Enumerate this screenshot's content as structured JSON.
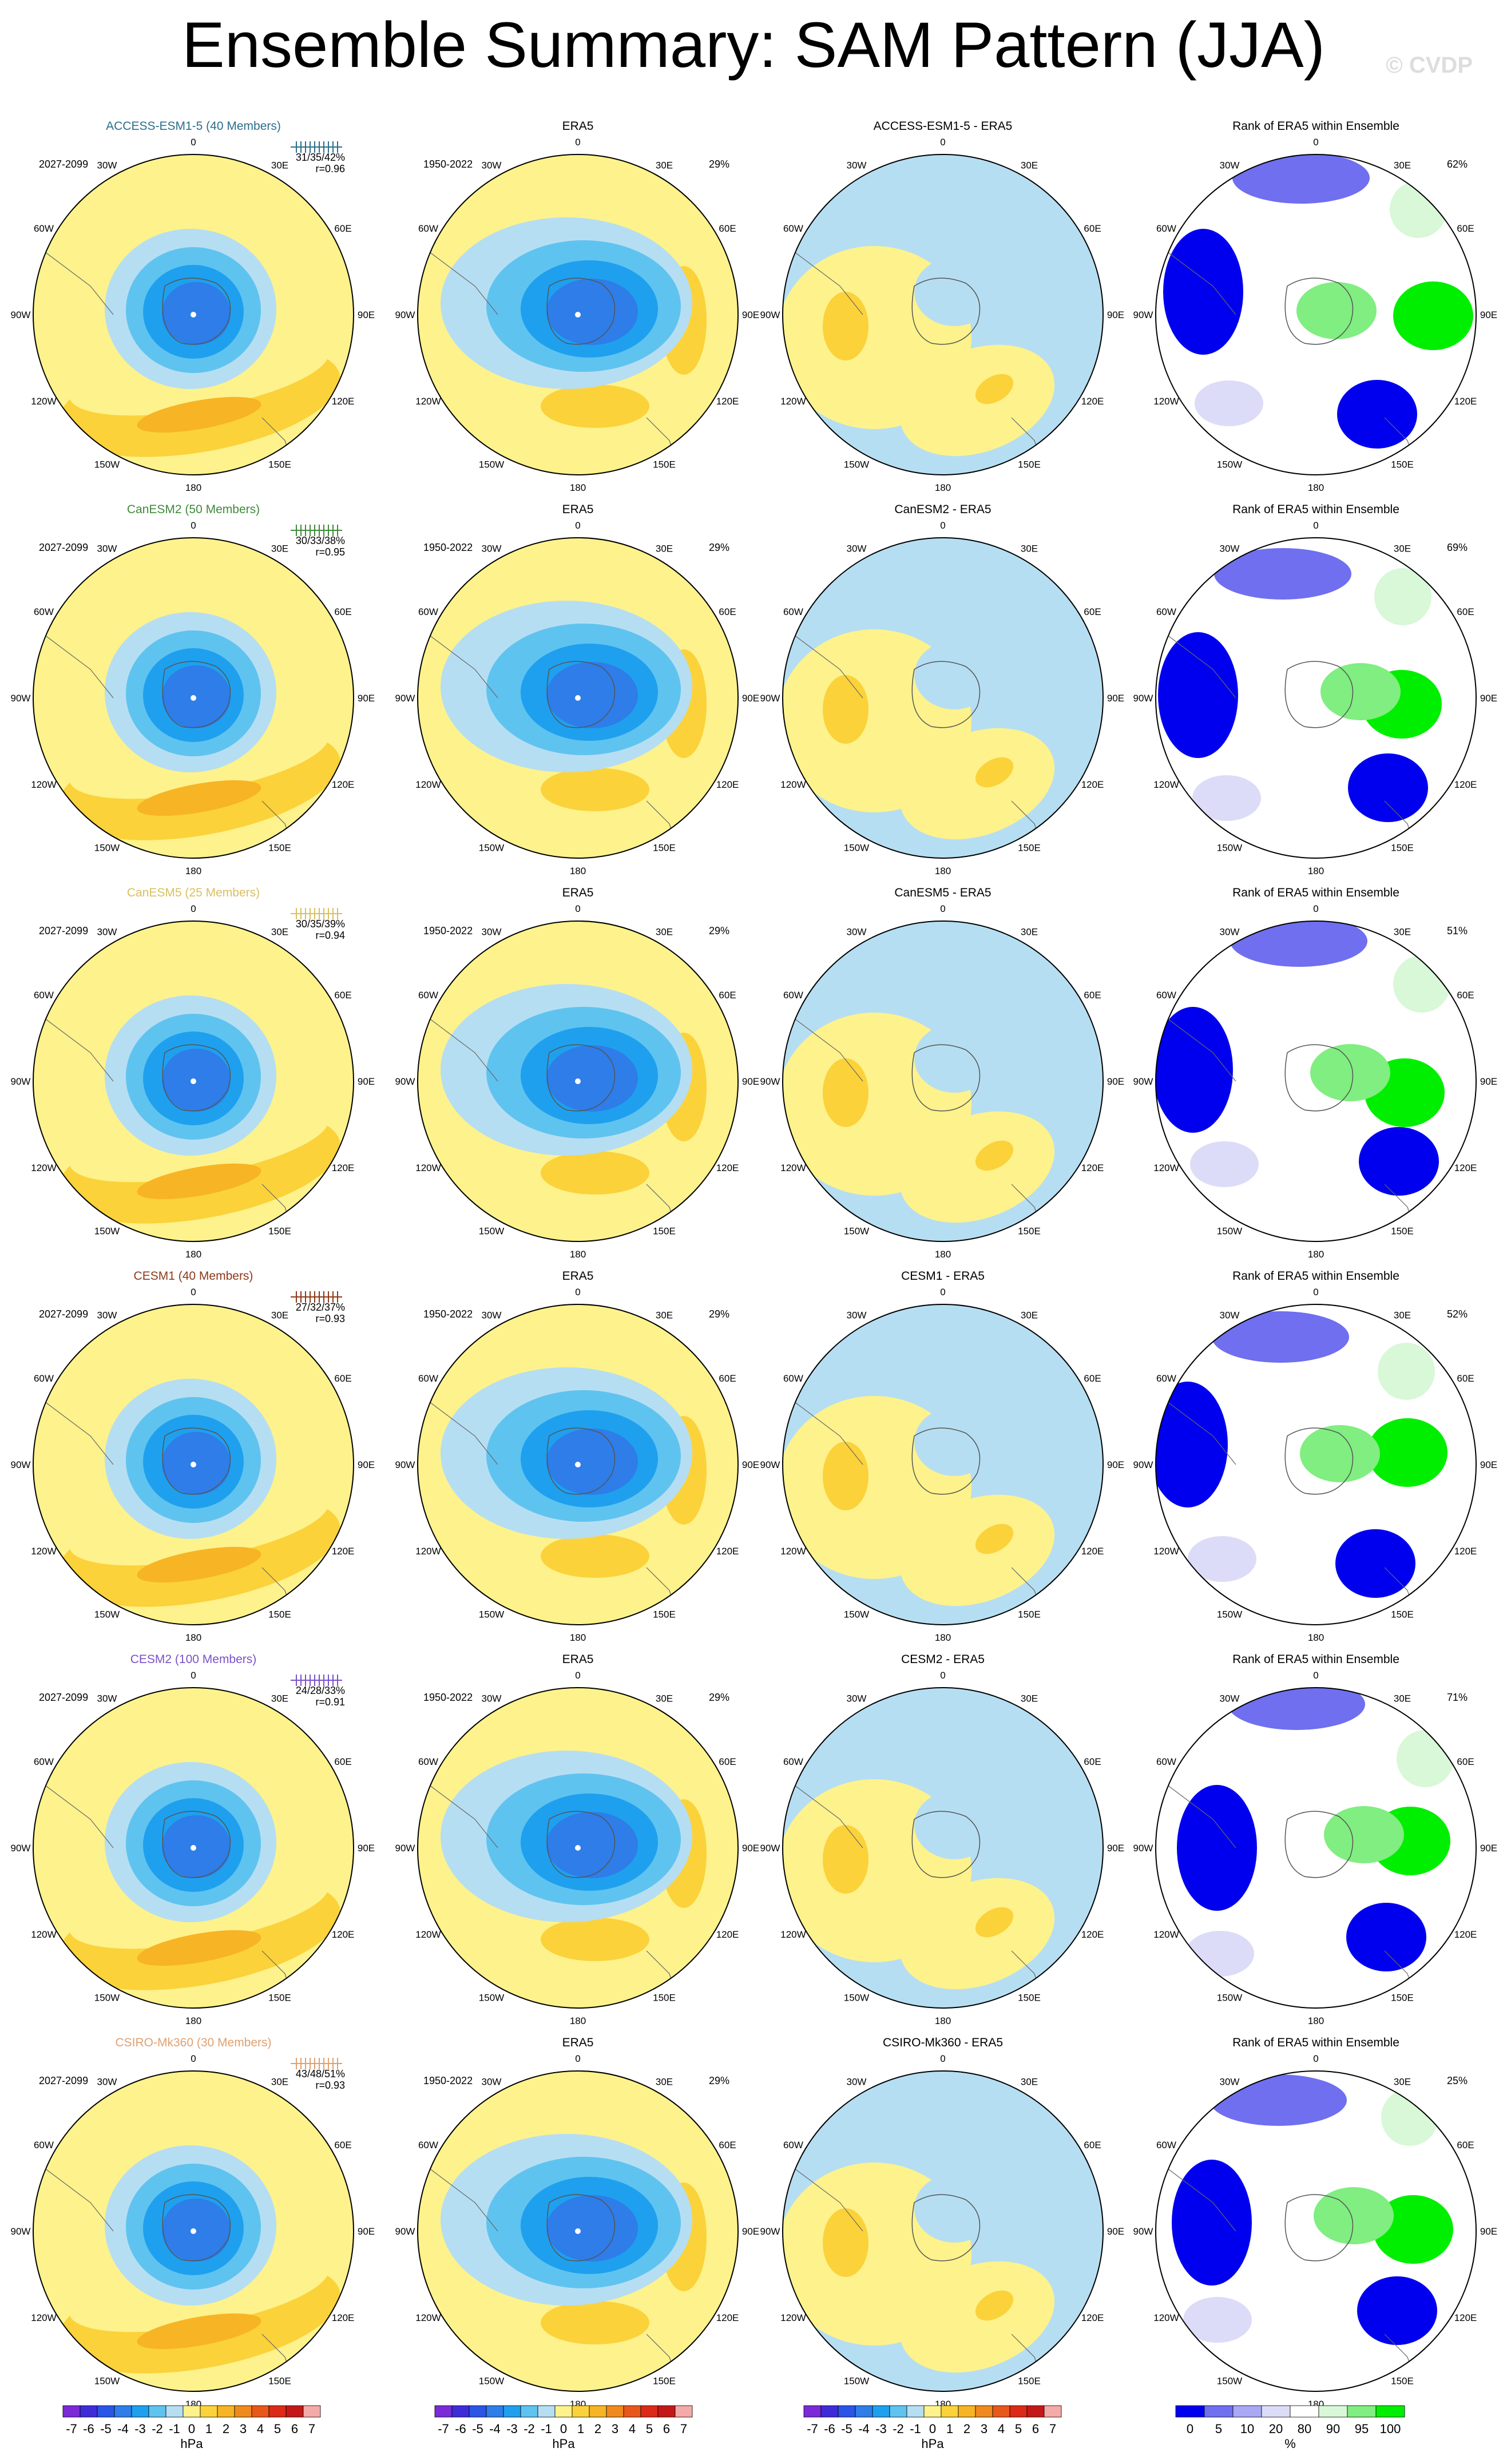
{
  "title": "Ensemble Summary: SAM Pattern (JJA)",
  "watermark": "© CVDP",
  "colors": {
    "neg7": "#7a2ad6",
    "neg6": "#3f2cd9",
    "neg5": "#2a55e6",
    "neg4": "#2e7de8",
    "neg3": "#1ea0ee",
    "neg2": "#5fc3f0",
    "neg1": "#b6def2",
    "pos0": "#fdf28c",
    "pos1": "#fbd23a",
    "pos2": "#f7b424",
    "pos3": "#f08a1e",
    "pos4": "#e8581a",
    "pos5": "#dc2a18",
    "pos6": "#c41818",
    "pos7": "#f4aaa8",
    "rank_deep_blue": "#0000ee",
    "rank_mid_blue": "#6f6ff0",
    "rank_light_blue": "#dcdcf8",
    "rank_white": "#ffffff",
    "rank_light_green": "#d8f8d8",
    "rank_mid_green": "#80ee80",
    "rank_green": "#00ee00",
    "model_colors": [
      "#2a6e8c",
      "#3f8a3a",
      "#d8c060",
      "#8b3a1a",
      "#7a52c8",
      "#e0a070"
    ]
  },
  "lon_labels": [
    "0",
    "30E",
    "60E",
    "90E",
    "120E",
    "150E",
    "180",
    "150W",
    "120W",
    "90W",
    "60W",
    "30W"
  ],
  "era5_label": "ERA5",
  "era5_period": "1950-2022",
  "rank_title": "Rank of ERA5 within Ensemble",
  "rows": [
    {
      "model": "ACCESS-ESM1-5",
      "members": "ACCESS-ESM1-5 (40 Members)",
      "period": "2027-2099",
      "stats": "31/35/42%",
      "r": "r=0.96",
      "diff_title": "ACCESS-ESM1-5 - ERA5",
      "rank_pct": "62%",
      "era5_pct": "29%"
    },
    {
      "model": "CanESM2",
      "members": "CanESM2 (50 Members)",
      "period": "2027-2099",
      "stats": "30/33/38%",
      "r": "r=0.95",
      "diff_title": "CanESM2 - ERA5",
      "rank_pct": "69%",
      "era5_pct": "29%"
    },
    {
      "model": "CanESM5",
      "members": "CanESM5 (25 Members)",
      "period": "2027-2099",
      "stats": "30/35/39%",
      "r": "r=0.94",
      "diff_title": "CanESM5 - ERA5",
      "rank_pct": "51%",
      "era5_pct": "29%"
    },
    {
      "model": "CESM1",
      "members": "CESM1 (40 Members)",
      "period": "2027-2099",
      "stats": "27/32/37%",
      "r": "r=0.93",
      "diff_title": "CESM1 - ERA5",
      "rank_pct": "52%",
      "era5_pct": "29%"
    },
    {
      "model": "CESM2",
      "members": "CESM2 (100 Members)",
      "period": "2027-2099",
      "stats": "24/28/33%",
      "r": "r=0.91",
      "diff_title": "CESM2 - ERA5",
      "rank_pct": "71%",
      "era5_pct": "29%"
    },
    {
      "model": "CSIRO-Mk360",
      "members": "CSIRO-Mk360 (30 Members)",
      "period": "2027-2099",
      "stats": "43/48/51%",
      "r": "r=0.93",
      "diff_title": "CSIRO-Mk360 - ERA5",
      "rank_pct": "25%",
      "era5_pct": "29%"
    }
  ],
  "colorbars": {
    "hpa_ticks": [
      "-7",
      "-6",
      "-5",
      "-4",
      "-3",
      "-2",
      "-1",
      "0",
      "1",
      "2",
      "3",
      "4",
      "5",
      "6",
      "7"
    ],
    "hpa_unit": "hPa",
    "rank_ticks": [
      "0",
      "5",
      "10",
      "20",
      "80",
      "90",
      "95",
      "100"
    ],
    "rank_unit": "%"
  },
  "chart_data": [
    {
      "type": "heatmap",
      "title": "Ensemble Summary: SAM Pattern (JJA)",
      "panels_per_row": [
        "model ensemble-mean SAM pattern",
        "ERA5",
        "model - ERA5",
        "Rank of ERA5 within Ensemble"
      ],
      "rows": [
        "ACCESS-ESM1-5",
        "CanESM2",
        "CanESM5",
        "CESM1",
        "CESM2",
        "CSIRO-Mk360"
      ],
      "pattern_colorbar": {
        "levels": [
          -7,
          -6,
          -5,
          -4,
          -3,
          -2,
          -1,
          0,
          1,
          2,
          3,
          4,
          5,
          6,
          7
        ],
        "unit": "hPa"
      },
      "rank_colorbar": {
        "levels": [
          0,
          5,
          10,
          20,
          80,
          90,
          95,
          100
        ],
        "unit": "%"
      },
      "projection": "south polar stereographic",
      "pattern_correlation_r": [
        0.96,
        0.95,
        0.94,
        0.93,
        0.91,
        0.93
      ],
      "rank_percent": [
        62,
        69,
        51,
        52,
        71,
        25
      ],
      "era5_percent": 29
    }
  ]
}
